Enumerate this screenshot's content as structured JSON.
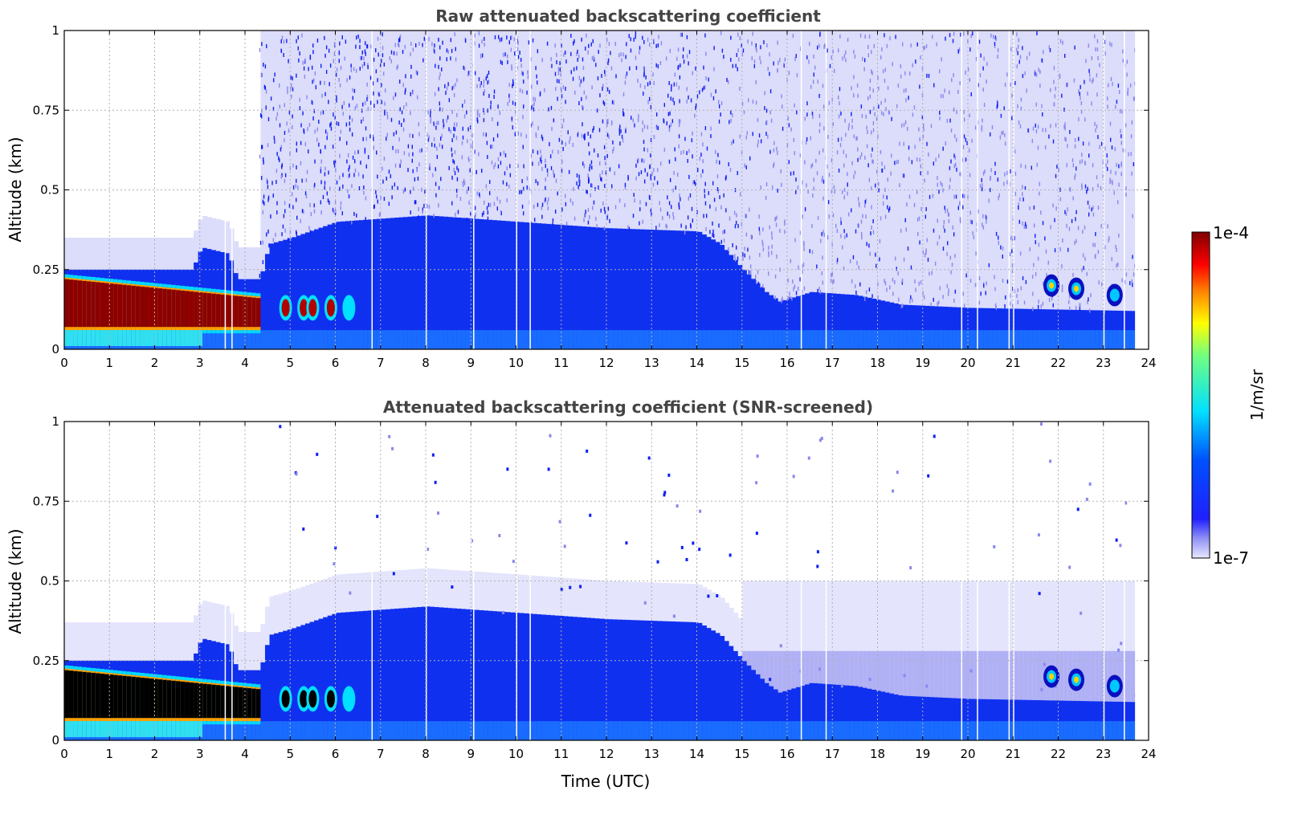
{
  "chart_data": [
    {
      "type": "heatmap",
      "title": "Raw attenuated backscattering coefficient",
      "xlabel": "",
      "ylabel": "Altitude (km)",
      "xlim": [
        0,
        24
      ],
      "ylim": [
        0,
        1
      ],
      "xticks": [
        "0",
        "1",
        "2",
        "3",
        "4",
        "5",
        "6",
        "7",
        "8",
        "9",
        "10",
        "11",
        "12",
        "13",
        "14",
        "15",
        "16",
        "17",
        "18",
        "19",
        "20",
        "21",
        "22",
        "23",
        "24"
      ],
      "yticks": [
        "0",
        "0.25",
        "0.5",
        "0.75",
        "1"
      ],
      "grid": true,
      "screened": false
    },
    {
      "type": "heatmap",
      "title": "Attenuated backscattering coefficient (SNR-screened)",
      "xlabel": "Time (UTC)",
      "ylabel": "Altitude (km)",
      "xlim": [
        0,
        24
      ],
      "ylim": [
        0,
        1
      ],
      "xticks": [
        "0",
        "1",
        "2",
        "3",
        "4",
        "5",
        "6",
        "7",
        "8",
        "9",
        "10",
        "11",
        "12",
        "13",
        "14",
        "15",
        "16",
        "17",
        "18",
        "19",
        "20",
        "21",
        "22",
        "23",
        "24"
      ],
      "yticks": [
        "0",
        "0.25",
        "0.5",
        "0.75",
        "1"
      ],
      "grid": true,
      "screened": true
    }
  ],
  "colorbar": {
    "label": "1/m/sr",
    "max_label": "1e-4",
    "min_label": "1e-7",
    "colormap": "jet"
  },
  "profile_model": {
    "data_end_hour": 23.7,
    "aerosol_top_km": [
      [
        0,
        0.25
      ],
      [
        2.8,
        0.25
      ],
      [
        3.0,
        0.32
      ],
      [
        3.6,
        0.3
      ],
      [
        3.8,
        0.22
      ],
      [
        4.3,
        0.22
      ],
      [
        4.5,
        0.33
      ],
      [
        5,
        0.35
      ],
      [
        6,
        0.4
      ],
      [
        8,
        0.42
      ],
      [
        10,
        0.4
      ],
      [
        12,
        0.38
      ],
      [
        14,
        0.37
      ],
      [
        14.5,
        0.33
      ],
      [
        15,
        0.25
      ],
      [
        15.5,
        0.18
      ],
      [
        15.8,
        0.15
      ],
      [
        16.5,
        0.18
      ],
      [
        17.5,
        0.17
      ],
      [
        18.5,
        0.14
      ],
      [
        20,
        0.13
      ],
      [
        23.7,
        0.12
      ]
    ],
    "dense_layer_hours": [
      0,
      4.3
    ],
    "dense_layer_km": [
      0.07,
      0.22
    ],
    "cloud_patches": [
      {
        "t": 21.85,
        "z_km": 0.2,
        "strength": "high"
      },
      {
        "t": 22.4,
        "z_km": 0.19,
        "strength": "high"
      },
      {
        "t": 23.25,
        "z_km": 0.17,
        "strength": "medium"
      }
    ]
  }
}
